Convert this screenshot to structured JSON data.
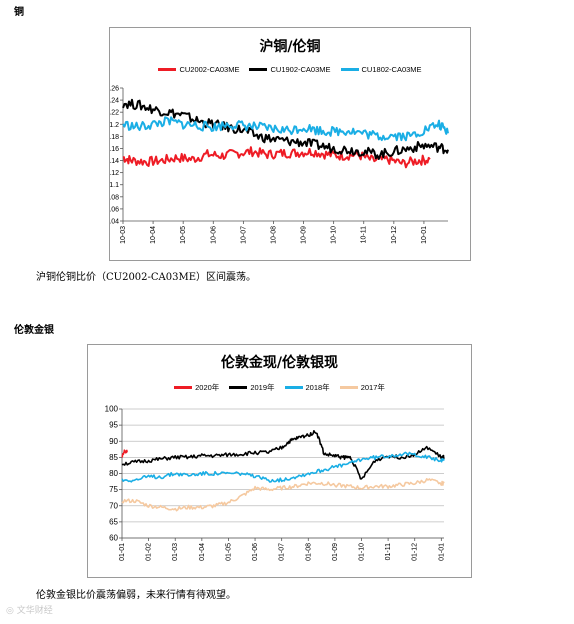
{
  "section1": {
    "title": "铜",
    "caption": "沪铜伦铜比价（CU2002-CA03ME）区间震荡。"
  },
  "section2": {
    "title": "伦敦金银",
    "caption": "伦敦金银比价震荡偏弱，未来行情有待观望。"
  },
  "watermark": "文华财经",
  "chart_data": [
    {
      "type": "line",
      "title": "沪铜/伦铜",
      "x_ticks": [
        "10-03",
        "10-04",
        "10-05",
        "10-06",
        "10-07",
        "10-08",
        "10-09",
        "10-10",
        "10-11",
        "10-12",
        "10-01"
      ],
      "y_ticks": [
        "1.04",
        "1.06",
        "1.08",
        "1.1",
        "1.12",
        "1.14",
        "1.16",
        "1.18",
        "1.2",
        "1.22",
        "1.24",
        "1.26"
      ],
      "ylim": [
        1.04,
        1.26
      ],
      "xlim": [
        0,
        10.8
      ],
      "grid": false,
      "legend_position": "top",
      "series": [
        {
          "name": "CU2002-CA03ME",
          "color": "#ee1c25",
          "x": [
            0,
            0.3,
            0.8,
            1.3,
            1.8,
            2.3,
            2.8,
            3.3,
            3.8,
            4.3,
            4.8,
            5.3,
            5.8,
            6.3,
            6.8,
            7.3,
            7.8,
            8.3,
            8.8,
            9.3,
            9.8,
            10.2
          ],
          "y": [
            1.145,
            1.14,
            1.138,
            1.14,
            1.145,
            1.142,
            1.15,
            1.148,
            1.152,
            1.155,
            1.15,
            1.152,
            1.153,
            1.155,
            1.15,
            1.148,
            1.15,
            1.14,
            1.142,
            1.135,
            1.14,
            1.142
          ]
        },
        {
          "name": "CU1902-CA03ME",
          "color": "#000000",
          "x": [
            0,
            0.5,
            1,
            1.5,
            2,
            2.5,
            3,
            3.5,
            4,
            4.5,
            5,
            5.5,
            6,
            6.5,
            7,
            7.5,
            8,
            8.5,
            9,
            9.5,
            10,
            10.5,
            10.8
          ],
          "y": [
            1.235,
            1.232,
            1.225,
            1.22,
            1.215,
            1.205,
            1.2,
            1.195,
            1.19,
            1.18,
            1.175,
            1.172,
            1.17,
            1.165,
            1.16,
            1.158,
            1.155,
            1.15,
            1.155,
            1.16,
            1.165,
            1.162,
            1.158
          ]
        },
        {
          "name": "CU1802-CA03ME",
          "color": "#1aaee5",
          "x": [
            0,
            0.5,
            1,
            1.5,
            2,
            2.5,
            3,
            3.5,
            4,
            4.5,
            5,
            5.5,
            6,
            6.5,
            7,
            7.5,
            8,
            8.5,
            9,
            9.5,
            10,
            10.5,
            10.8
          ],
          "y": [
            1.2,
            1.195,
            1.2,
            1.205,
            1.2,
            1.198,
            1.195,
            1.2,
            1.198,
            1.195,
            1.192,
            1.19,
            1.195,
            1.19,
            1.188,
            1.19,
            1.185,
            1.18,
            1.182,
            1.18,
            1.19,
            1.2,
            1.185
          ]
        }
      ]
    },
    {
      "type": "line",
      "title": "伦敦金现/伦敦银现",
      "x_ticks": [
        "01-01",
        "01-02",
        "01-03",
        "01-04",
        "01-05",
        "01-06",
        "01-07",
        "01-08",
        "01-09",
        "01-10",
        "01-11",
        "01-12",
        "01-01"
      ],
      "y_ticks": [
        "60",
        "65",
        "70",
        "75",
        "80",
        "85",
        "90",
        "95",
        "100"
      ],
      "ylim": [
        60,
        100
      ],
      "xlim": [
        0,
        12.1
      ],
      "grid": true,
      "legend_position": "top",
      "series": [
        {
          "name": "2020年",
          "color": "#ee1c25",
          "x": [
            0,
            0.1,
            0.2
          ],
          "y": [
            85,
            87,
            86.5
          ]
        },
        {
          "name": "2019年",
          "color": "#000000",
          "x": [
            0,
            0.5,
            1,
            1.5,
            2,
            2.5,
            3,
            3.5,
            4,
            4.5,
            5,
            5.5,
            6,
            6.3,
            6.6,
            7,
            7.3,
            7.6,
            8,
            8.3,
            8.6,
            9,
            9.5,
            10,
            10.5,
            11,
            11.5,
            12,
            12.1
          ],
          "y": [
            83,
            83.5,
            84,
            84.5,
            85,
            85,
            85.5,
            85.5,
            85.8,
            86,
            86.5,
            86.5,
            88,
            90,
            91,
            92,
            93,
            86,
            85.5,
            85,
            85,
            78,
            84,
            85.5,
            85,
            86,
            88,
            85,
            85
          ]
        },
        {
          "name": "2018年",
          "color": "#1aaee5",
          "x": [
            0,
            0.5,
            1,
            1.5,
            2,
            2.5,
            3,
            3.5,
            4,
            4.5,
            5,
            5.5,
            6,
            6.5,
            7,
            7.5,
            8,
            8.5,
            9,
            9.5,
            10,
            10.5,
            11,
            11.5,
            12,
            12.1
          ],
          "y": [
            78,
            78,
            79,
            79,
            80,
            79.5,
            80,
            80,
            80,
            80,
            79,
            78,
            78,
            79,
            80,
            81,
            82,
            83,
            84.5,
            85,
            85.5,
            86,
            86,
            85,
            84,
            84
          ]
        },
        {
          "name": "2017年",
          "color": "#f5c9a0",
          "x": [
            0,
            0.5,
            1,
            1.5,
            2,
            2.5,
            3,
            3.5,
            4,
            4.5,
            5,
            5.5,
            6,
            6.5,
            7,
            7.5,
            8,
            8.5,
            9,
            9.5,
            10,
            10.5,
            11,
            11.5,
            12,
            12.1
          ],
          "y": [
            71.5,
            71.5,
            70,
            69.5,
            69,
            69.5,
            69.5,
            70,
            71,
            73,
            75.5,
            75,
            75.5,
            76,
            77,
            77,
            76.5,
            76,
            75.5,
            76,
            76,
            76.5,
            77,
            78,
            77,
            77
          ]
        }
      ]
    }
  ]
}
